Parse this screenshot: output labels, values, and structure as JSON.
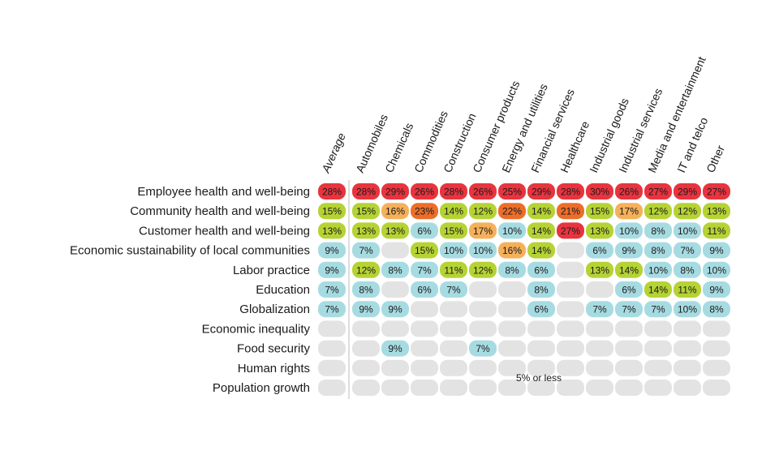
{
  "chart_data": {
    "type": "heatmap",
    "columns": [
      "Average",
      "Automobiles",
      "Chemicals",
      "Commodities",
      "Construction",
      "Consumer products",
      "Energy and utilities",
      "Financial services",
      "Healthcare",
      "Industrial goods",
      "Industrial services",
      "Media and entertainment",
      "IT and telco",
      "Other"
    ],
    "rows": [
      "Employee health and well-being",
      "Community health and well-being",
      "Customer health and well-being",
      "Economic sustainability of local communities",
      "Labor practice",
      "Education",
      "Globalization",
      "Economic inequality",
      "Food security",
      "Human rights",
      "Population growth"
    ],
    "values": [
      [
        28,
        28,
        29,
        26,
        28,
        26,
        25,
        29,
        28,
        30,
        26,
        27,
        29,
        27
      ],
      [
        15,
        15,
        16,
        23,
        14,
        12,
        22,
        14,
        21,
        15,
        17,
        12,
        12,
        13
      ],
      [
        13,
        13,
        13,
        6,
        15,
        17,
        10,
        14,
        27,
        13,
        10,
        8,
        10,
        11
      ],
      [
        9,
        7,
        null,
        15,
        10,
        10,
        16,
        14,
        null,
        6,
        9,
        8,
        7,
        9
      ],
      [
        9,
        12,
        8,
        7,
        11,
        12,
        8,
        6,
        null,
        13,
        14,
        10,
        8,
        10
      ],
      [
        7,
        8,
        null,
        6,
        7,
        null,
        null,
        8,
        null,
        null,
        6,
        14,
        11,
        9
      ],
      [
        7,
        9,
        9,
        null,
        null,
        null,
        null,
        6,
        null,
        7,
        7,
        7,
        10,
        8
      ],
      [
        null,
        null,
        null,
        null,
        null,
        null,
        null,
        null,
        null,
        null,
        null,
        null,
        null,
        null
      ],
      [
        null,
        null,
        9,
        null,
        null,
        7,
        null,
        null,
        null,
        null,
        null,
        null,
        null,
        null
      ],
      [
        null,
        null,
        null,
        null,
        null,
        null,
        null,
        null,
        null,
        null,
        null,
        null,
        null,
        null
      ],
      [
        null,
        null,
        null,
        null,
        null,
        null,
        null,
        null,
        null,
        null,
        null,
        null,
        null,
        null
      ]
    ],
    "note": "5% or less",
    "colors": {
      "empty": "#e3e3e3",
      "low": "#a7dbe2",
      "mid": "#b5d334",
      "mid_high": "#f5b05a",
      "high": "#ec6e2a",
      "top": "#e8343f",
      "divider": "#bbbbbb"
    }
  }
}
